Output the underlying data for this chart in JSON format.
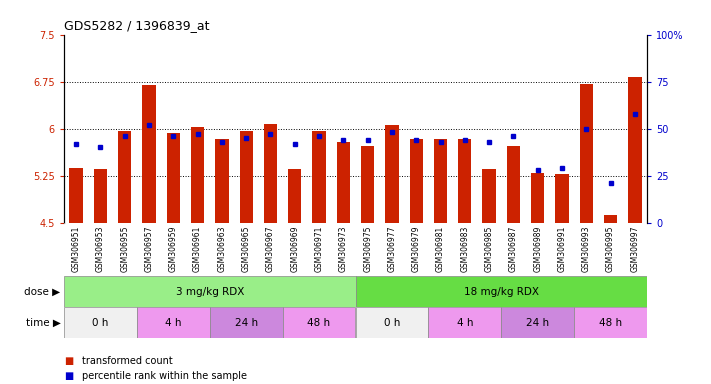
{
  "title": "GDS5282 / 1396839_at",
  "samples": [
    "GSM306951",
    "GSM306953",
    "GSM306955",
    "GSM306957",
    "GSM306959",
    "GSM306961",
    "GSM306963",
    "GSM306965",
    "GSM306967",
    "GSM306969",
    "GSM306971",
    "GSM306973",
    "GSM306975",
    "GSM306977",
    "GSM306979",
    "GSM306981",
    "GSM306983",
    "GSM306985",
    "GSM306987",
    "GSM306989",
    "GSM306991",
    "GSM306993",
    "GSM306995",
    "GSM306997"
  ],
  "red_values": [
    5.38,
    5.35,
    5.97,
    6.7,
    5.93,
    6.02,
    5.84,
    5.96,
    6.08,
    5.36,
    5.96,
    5.78,
    5.73,
    6.06,
    5.83,
    5.83,
    5.83,
    5.36,
    5.73,
    5.29,
    5.28,
    6.71,
    4.63,
    6.82
  ],
  "blue_values": [
    42,
    40,
    46,
    52,
    46,
    47,
    43,
    45,
    47,
    42,
    46,
    44,
    44,
    48,
    44,
    43,
    44,
    43,
    46,
    28,
    29,
    50,
    21,
    58
  ],
  "ymin": 4.5,
  "ymax": 7.5,
  "yticks": [
    4.5,
    5.25,
    6.0,
    6.75,
    7.5
  ],
  "ytick_labels": [
    "4.5",
    "5.25",
    "6",
    "6.75",
    "7.5"
  ],
  "y2ticks": [
    0,
    25,
    50,
    75,
    100
  ],
  "y2tick_labels": [
    "0",
    "25",
    "50",
    "75",
    "100%"
  ],
  "hlines": [
    5.25,
    6.0,
    6.75
  ],
  "bar_color": "#cc2200",
  "blue_color": "#0000cc",
  "plot_bg": "#ffffff",
  "label_area_bg": "#d8d8d8",
  "dose_colors": [
    "#99ee88",
    "#66dd44"
  ],
  "dose_labels": [
    "3 mg/kg RDX",
    "18 mg/kg RDX"
  ],
  "dose_starts": [
    0,
    12
  ],
  "dose_ends": [
    12,
    24
  ],
  "time_labels": [
    "0 h",
    "4 h",
    "24 h",
    "48 h",
    "0 h",
    "4 h",
    "24 h",
    "48 h"
  ],
  "time_starts": [
    0,
    3,
    6,
    9,
    12,
    15,
    18,
    21
  ],
  "time_ends": [
    3,
    6,
    9,
    12,
    15,
    18,
    21,
    24
  ],
  "time_colors": [
    "#f0f0f0",
    "#ee99ee",
    "#cc88dd",
    "#ee99ee",
    "#f0f0f0",
    "#ee99ee",
    "#cc88dd",
    "#ee99ee"
  ],
  "legend_items": [
    {
      "color": "#cc2200",
      "label": "transformed count"
    },
    {
      "color": "#0000cc",
      "label": "percentile rank within the sample"
    }
  ]
}
